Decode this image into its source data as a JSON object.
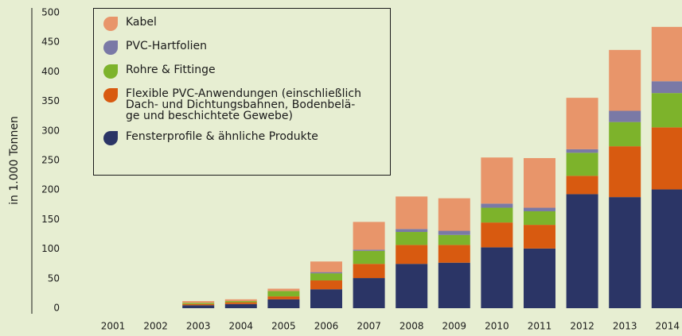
{
  "chart_data": {
    "type": "stacked_bar",
    "y_label": "in 1.000 Tonnen",
    "categories": [
      "2001",
      "2002",
      "2003",
      "2004",
      "2005",
      "2006",
      "2007",
      "2008",
      "2009",
      "2010",
      "2011",
      "2012",
      "2013",
      "2014"
    ],
    "ylim": [
      0,
      500
    ],
    "yticks": [
      0,
      50,
      100,
      150,
      200,
      250,
      300,
      350,
      400,
      450,
      500
    ],
    "legend": "top-left",
    "series": [
      {
        "name": "Fensterprofile & ähnliche Produkte",
        "color": "#2b3566",
        "values": [
          0,
          0,
          5,
          7,
          15,
          32,
          51,
          75,
          77,
          103,
          101,
          193,
          188,
          201
        ]
      },
      {
        "name": "Flexible PVC-Anwendungen (einschließlich\nDach- und Dichtungsbahnen, Bodenbelä-\nge und beschichtete Gewebe)",
        "color": "#d85a10",
        "values": [
          0,
          0,
          2,
          3,
          5,
          15,
          24,
          32,
          30,
          42,
          40,
          31,
          86,
          105
        ]
      },
      {
        "name": "Rohre & Fittinge",
        "color": "#7db32b",
        "values": [
          0,
          0,
          2,
          2,
          9,
          12,
          22,
          22,
          17,
          25,
          23,
          39,
          41,
          58
        ]
      },
      {
        "name": "PVC-Hartfolien",
        "color": "#7a79a6",
        "values": [
          0,
          0,
          0,
          0,
          0,
          2,
          2,
          5,
          7,
          7,
          6,
          6,
          19,
          20
        ]
      },
      {
        "name": "Kabel",
        "color": "#e8956a",
        "values": [
          0,
          0,
          3,
          3,
          4,
          18,
          47,
          55,
          55,
          78,
          84,
          87,
          103,
          92
        ]
      }
    ]
  }
}
